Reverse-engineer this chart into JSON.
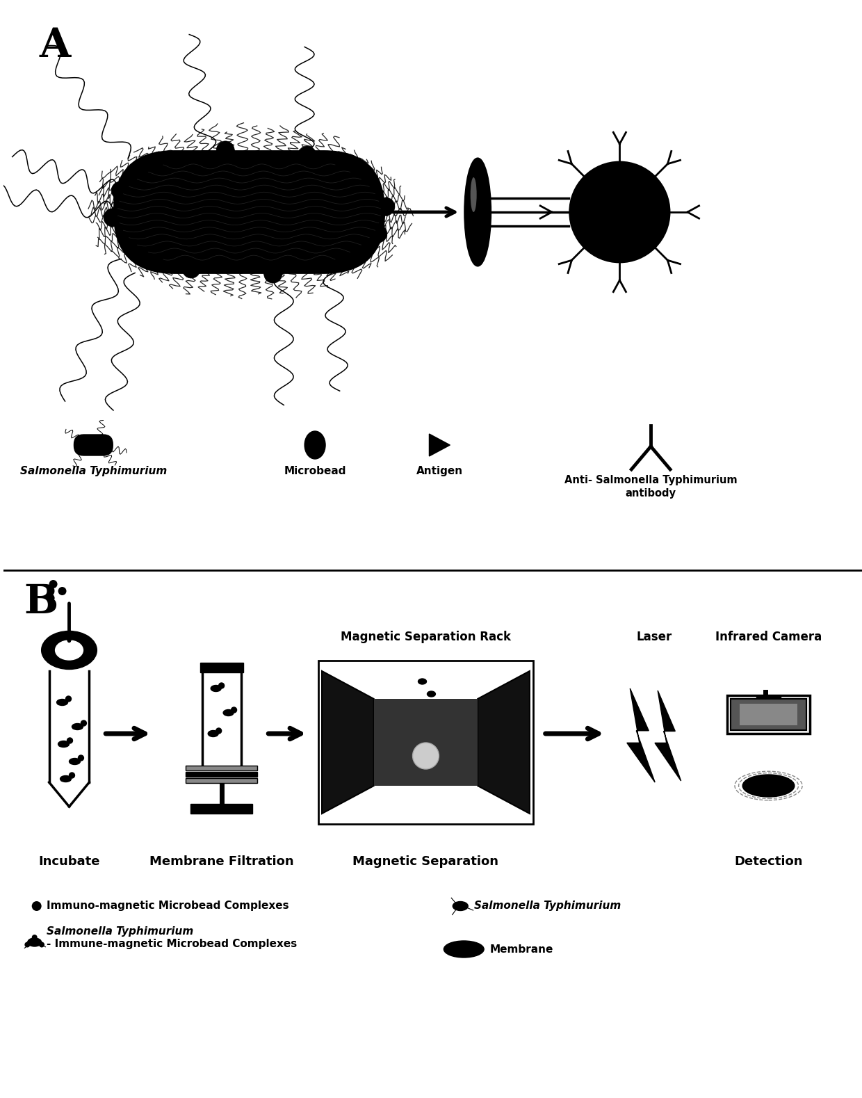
{
  "bg_color": "#ffffff",
  "label_A": "A",
  "label_B": "B",
  "panel_A_labels": {
    "salmonella": "Salmonella Typhimurium",
    "microbead": "Microbead",
    "antigen": "Antigen",
    "antibody_line1": "Anti- Salmonella Typhimurium",
    "antibody_line2": "antibody"
  },
  "panel_B_labels": {
    "incubate": "Incubate",
    "membrane_filtration": "Membrane Filtration",
    "magnetic_separation": "Magnetic Separation",
    "magnetic_separation_rack": "Magnetic Separation Rack",
    "laser": "Laser",
    "infrared_camera": "Infrared Camera",
    "detection": "Detection"
  },
  "legend_labels": {
    "dot": "Immuno-magnetic Microbead Complexes",
    "salmonella_complex_line1": "Salmonella Typhimurium",
    "salmonella_complex_line2": "- Immune-magnetic Microbead Complexes",
    "salmonella_right": "Salmonella Typhimurium",
    "membrane": "Membrane"
  },
  "black": "#000000",
  "white": "#ffffff"
}
